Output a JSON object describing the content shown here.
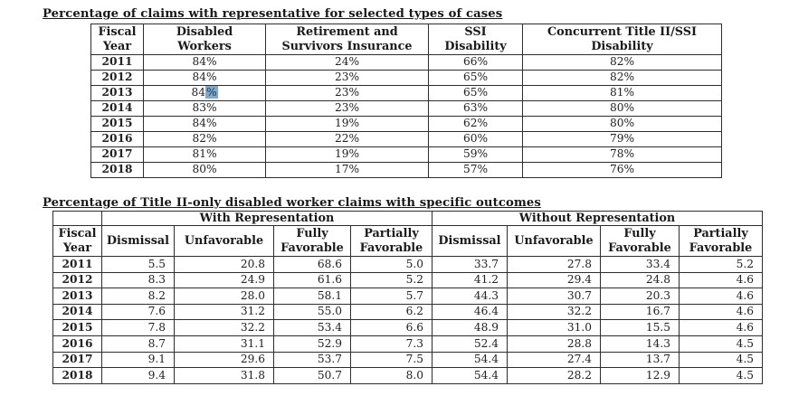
{
  "table1": {
    "title": "Percentage of claims with representative for selected types of cases",
    "headers": [
      [
        "Fiscal",
        "Year"
      ],
      [
        "Disabled",
        "Workers"
      ],
      [
        "Retirement and",
        "Survivors Insurance"
      ],
      [
        "SSI",
        "Disability"
      ],
      [
        "Concurrent Title II/SSI",
        "Disability"
      ]
    ],
    "rows": [
      {
        "year": "2011",
        "values": [
          "84%",
          "24%",
          "66%",
          "82%"
        ]
      },
      {
        "year": "2012",
        "values": [
          "84%",
          "23%",
          "65%",
          "82%"
        ]
      },
      {
        "year": "2013",
        "values": [
          "84%",
          "23%",
          "65%",
          "81%"
        ]
      },
      {
        "year": "2014",
        "values": [
          "83%",
          "23%",
          "63%",
          "80%"
        ]
      },
      {
        "year": "2015",
        "values": [
          "84%",
          "19%",
          "62%",
          "80%"
        ]
      },
      {
        "year": "2016",
        "values": [
          "82%",
          "22%",
          "60%",
          "79%"
        ]
      },
      {
        "year": "2017",
        "values": [
          "81%",
          "19%",
          "59%",
          "78%"
        ]
      },
      {
        "year": "2018",
        "values": [
          "80%",
          "17%",
          "57%",
          "76%"
        ]
      }
    ],
    "find_highlight": {
      "row_index": 2,
      "col_index": 0,
      "prefix": "84",
      "marked": "%",
      "color": "#84a9c8"
    }
  },
  "table2": {
    "title": "Percentage of Title II-only disabled worker claims with specific outcomes",
    "group_headers": [
      "With Representation",
      "Without Representation"
    ],
    "fiscal_year_header": [
      "Fiscal",
      "Year"
    ],
    "column_headers": [
      [
        "Dismissal"
      ],
      [
        "Unfavorable"
      ],
      [
        "Fully",
        "Favorable"
      ],
      [
        "Partially",
        "Favorable"
      ]
    ],
    "rows": [
      {
        "year": "2011",
        "with": [
          "5.5",
          "20.8",
          "68.6",
          "5.0"
        ],
        "without": [
          "33.7",
          "27.8",
          "33.4",
          "5.2"
        ]
      },
      {
        "year": "2012",
        "with": [
          "8.3",
          "24.9",
          "61.6",
          "5.2"
        ],
        "without": [
          "41.2",
          "29.4",
          "24.8",
          "4.6"
        ]
      },
      {
        "year": "2013",
        "with": [
          "8.2",
          "28.0",
          "58.1",
          "5.7"
        ],
        "without": [
          "44.3",
          "30.7",
          "20.3",
          "4.6"
        ]
      },
      {
        "year": "2014",
        "with": [
          "7.6",
          "31.2",
          "55.0",
          "6.2"
        ],
        "without": [
          "46.4",
          "32.2",
          "16.7",
          "4.6"
        ]
      },
      {
        "year": "2015",
        "with": [
          "7.8",
          "32.2",
          "53.4",
          "6.6"
        ],
        "without": [
          "48.9",
          "31.0",
          "15.5",
          "4.6"
        ]
      },
      {
        "year": "2016",
        "with": [
          "8.7",
          "31.1",
          "52.9",
          "7.3"
        ],
        "without": [
          "52.4",
          "28.8",
          "14.3",
          "4.5"
        ]
      },
      {
        "year": "2017",
        "with": [
          "9.1",
          "29.6",
          "53.7",
          "7.5"
        ],
        "without": [
          "54.4",
          "27.4",
          "13.7",
          "4.5"
        ]
      },
      {
        "year": "2018",
        "with": [
          "9.4",
          "31.8",
          "50.7",
          "8.0"
        ],
        "without": [
          "54.4",
          "28.2",
          "12.9",
          "4.5"
        ]
      }
    ]
  }
}
